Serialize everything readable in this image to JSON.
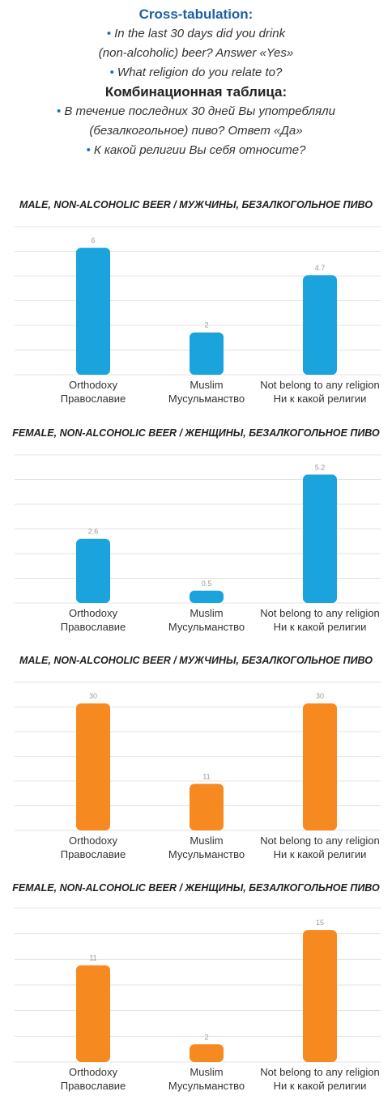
{
  "header": {
    "title_en": "Cross-tabulation:",
    "q1_line1_en": "In the last 30 days did you drink",
    "q1_line2_en": "(non-alcoholic) beer? Answer «Yes»",
    "q2_en": "What religion do you relate to?",
    "title_ru": "Комбинационная таблица:",
    "q1_line1_ru": "В течение последних 30 дней Вы употребляли",
    "q1_line2_ru": "(безалкогольное) пиво? Ответ «Да»",
    "q2_ru": "К какой религии Вы себя относите?",
    "bullet": "•"
  },
  "colors": {
    "title_blue": "#1f5fa8",
    "bullet_blue": "#1f6fb8",
    "bar_blue": "#1aa3dc",
    "bar_orange": "#f6891f",
    "grid": "#e3e3e3"
  },
  "chart_data": [
    {
      "type": "bar",
      "title": "MALE, NON-ALCOHOLIC BEER / МУЖЧИНЫ, БЕЗАЛКОГОЛЬНОЕ ПИВО",
      "categories": [
        [
          "Orthodoxy",
          "Православие"
        ],
        [
          "Muslim",
          "Мусульманство"
        ],
        [
          "Not belong to any religion",
          "Ни к какой религии"
        ]
      ],
      "values": [
        6,
        2,
        4.7
      ],
      "ylim": [
        0,
        7
      ],
      "color": "#1aa3dc",
      "grid": true
    },
    {
      "type": "bar",
      "title": "FEMALE, NON-ALCOHOLIC BEER / ЖЕНЩИНЫ, БЕЗАЛКОГОЛЬНОЕ ПИВО",
      "categories": [
        [
          "Orthodoxy",
          "Православие"
        ],
        [
          "Muslim",
          "Мусульманство"
        ],
        [
          "Not belong to any religion",
          "Ни к какой религии"
        ]
      ],
      "values": [
        2.6,
        0.5,
        5.2
      ],
      "ylim": [
        0,
        6
      ],
      "color": "#1aa3dc",
      "grid": true
    },
    {
      "type": "bar",
      "title": "MALE, NON-ALCOHOLIC BEER / МУЖЧИНЫ, БЕЗАЛКОГОЛЬНОЕ ПИВО",
      "categories": [
        [
          "Orthodoxy",
          "Православие"
        ],
        [
          "Muslim",
          "Мусульманство"
        ],
        [
          "Not belong to any religion",
          "Ни к какой религии"
        ]
      ],
      "values": [
        30,
        11,
        30
      ],
      "ylim": [
        0,
        35
      ],
      "color": "#f6891f",
      "grid": true
    },
    {
      "type": "bar",
      "title": "FEMALE, NON-ALCOHOLIC BEER / ЖЕНЩИНЫ, БЕЗАЛКОГОЛЬНОЕ ПИВО",
      "categories": [
        [
          "Orthodoxy",
          "Православие"
        ],
        [
          "Muslim",
          "Мусульманство"
        ],
        [
          "Not belong to any religion",
          "Ни к какой религии"
        ]
      ],
      "values": [
        11,
        2,
        15
      ],
      "ylim": [
        0,
        17.5
      ],
      "color": "#f6891f",
      "grid": true
    }
  ]
}
